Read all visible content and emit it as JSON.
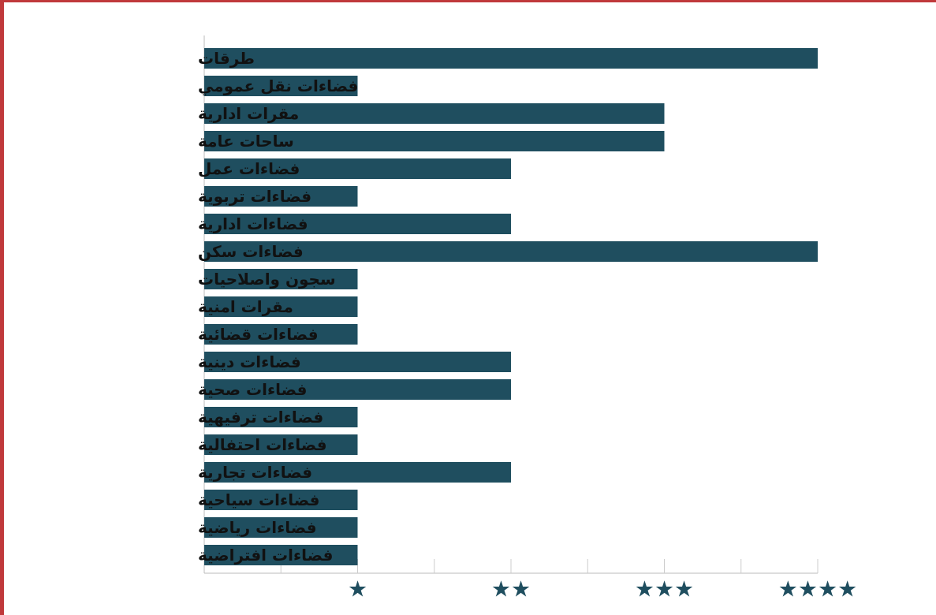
{
  "chart_data": {
    "type": "bar",
    "orientation": "horizontal",
    "categories": [
      "طرقات",
      "فضاءات نقل عمومي",
      "مقرات ادارية",
      "ساحات عامة",
      "فضاءات عمل",
      "فضاءات تربوية",
      "فضاءات ادارية",
      "فضاءات سكن",
      "سجون واصلاحيات",
      "مقرات امنية",
      "فضاءات قضائية",
      "فضاءات دينية",
      "فضاءات صحية",
      "فضاءات ترفيهية",
      "فضاءات احتفالية",
      "فضاءات تجارية",
      "فضاءات سياحية",
      "فضاءات رياضية",
      "فضاءات افتراضية"
    ],
    "values": [
      4,
      1,
      3,
      3,
      2,
      1,
      2,
      4,
      1,
      1,
      1,
      2,
      2,
      1,
      1,
      2,
      1,
      1,
      1
    ],
    "xlim": [
      0,
      4
    ],
    "x_ticks": [
      {
        "value": 1,
        "label": "★"
      },
      {
        "value": 2,
        "label": "★★"
      },
      {
        "value": 3,
        "label": "★★★"
      },
      {
        "value": 4,
        "label": "★★★★"
      }
    ],
    "title": "",
    "xlabel": "",
    "ylabel": "",
    "grid": false,
    "bar_color": "#1f4e5f",
    "frame_color": "#c0393b"
  }
}
